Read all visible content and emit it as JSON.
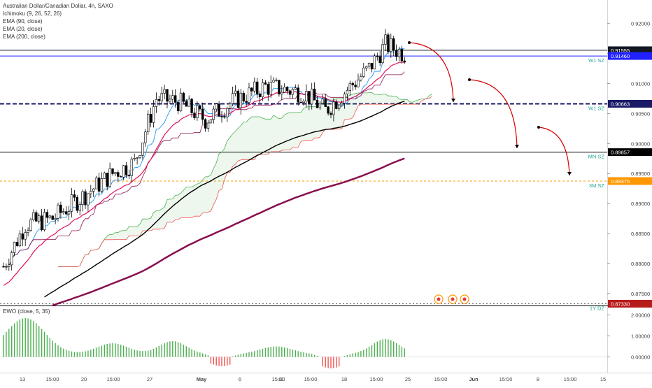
{
  "chart_data": {
    "type": "line",
    "title": "Australian Dollar/Canadian Dollar, 4h, SAXO",
    "indicators": [
      "Ichimoku (9, 26, 52, 26)",
      "EMA (90, close)",
      "EMA (20, close)",
      "EMA (200, close)"
    ],
    "oscillator_label": "EWO (close, 5, 35)",
    "y_axis": {
      "ticks": [
        "0.92000",
        "0.91500",
        "0.91000",
        "0.90500",
        "0.90000",
        "0.89500",
        "0.89000",
        "0.88500",
        "0.88000",
        "0.87500"
      ],
      "ylim": [
        0.873,
        0.923
      ]
    },
    "x_axis": {
      "ticks": [
        "13",
        "15:00",
        "20",
        "15:00",
        "27",
        "May",
        "6",
        "15:00",
        "11",
        "15:00",
        "18",
        "15:00",
        "25",
        "15:00",
        "Jun",
        "15:00",
        "8",
        "15:00",
        "15"
      ]
    },
    "price_markers": [
      {
        "value": 0.91555,
        "label": "0.91555",
        "color": "#131722",
        "text_color": "#ffffff"
      },
      {
        "value": 0.9146,
        "label": "0.91460",
        "color": "#2121ff",
        "text_color": "#ffffff"
      },
      {
        "value": 0.90663,
        "label": "0.90663",
        "color": "#1a1a66",
        "text_color": "#ffffff"
      },
      {
        "value": 0.89857,
        "label": "0.89857",
        "color": "#000000",
        "text_color": "#ffffff"
      },
      {
        "value": 0.89375,
        "label": "0.89375",
        "color": "#ff9800",
        "text_color": "#ffffff"
      },
      {
        "value": 0.8733,
        "label": "0.87330",
        "color": "#b71c1c",
        "text_color": "#ffffff"
      }
    ],
    "zones": [
      {
        "label": "W1 SZ",
        "value": 0.9146
      },
      {
        "label": "W1 SZ",
        "value": 0.90663
      },
      {
        "label": "MN SZ",
        "value": 0.89857
      },
      {
        "label": "3M SZ",
        "value": 0.89375
      },
      {
        "label": "1Y DZ",
        "value": 0.8733
      }
    ],
    "ewo": {
      "ticks": [
        "2.00000",
        "1.00000",
        "0.00000"
      ],
      "ylim": [
        -0.55,
        2.35
      ]
    },
    "colors": {
      "up": "#ffffff",
      "down": "#000000",
      "ema20": "#e0115f",
      "ema90": "#000000",
      "ema200": "#880e4f",
      "tenkan": "#2196f3",
      "kijun": "#880e4f",
      "span_a": "#4caf50",
      "span_b": "#ef5350",
      "ewo_pos": "#4caf50",
      "ewo_neg": "#ef5350",
      "arrow": "#d50000"
    }
  }
}
